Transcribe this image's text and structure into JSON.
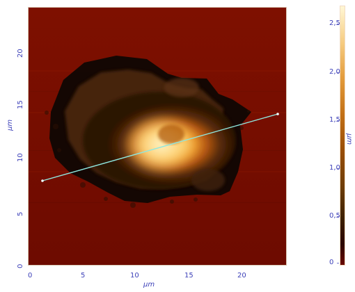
{
  "axes": {
    "x_label": "μm",
    "y_label": "μm",
    "colorbar_label": "μm",
    "x_ticks": [
      "0",
      "5",
      "10",
      "15",
      "20"
    ],
    "y_ticks": [
      "0",
      "5",
      "10",
      "15",
      "20"
    ],
    "colorbar_ticks": [
      "0",
      "0,5",
      "1,0",
      "1,5",
      "2,0",
      "2,5"
    ]
  },
  "colors": {
    "background": "#7b0c00",
    "axis_text": "#3b3fb8",
    "profile_line": "#8fe7df",
    "colorbar_min": "#2a0600",
    "colorbar_max": "#fff7d5"
  },
  "image": {
    "type": "afm-height-map",
    "description": ""
  }
}
